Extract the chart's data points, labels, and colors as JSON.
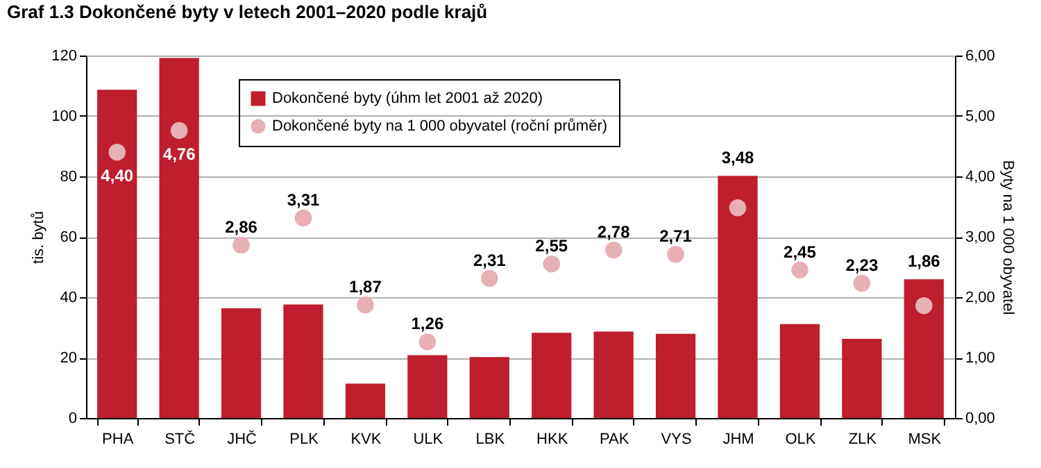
{
  "chart_data": {
    "type": "bar",
    "title": "Graf 1.3 Dokončené byty v letech 2001–2020 podle krajů",
    "ylabel": "tis. bytů",
    "y2label": "Byty na 1 000 obyvatel",
    "categories": [
      "PHA",
      "STČ",
      "JHČ",
      "PLK",
      "KVK",
      "ULK",
      "LBK",
      "HKK",
      "PAK",
      "VYS",
      "JHM",
      "OLK",
      "ZLK",
      "MSK"
    ],
    "series": [
      {
        "name": "Dokončené byty (úhm let 2001 až 2020)",
        "color": "#be1e2d",
        "values": [
          108.7,
          119.2,
          36.3,
          37.6,
          11.4,
          20.8,
          20.2,
          28.2,
          28.6,
          27.9,
          80.2,
          31.1,
          26.2,
          45.9
        ]
      },
      {
        "name": "Dokončené byty na 1 000 obyvatel (roční průměr)",
        "type": "scatter",
        "axis": "y2",
        "color": "#e6b0b4",
        "marker": "circle",
        "values": [
          4.4,
          4.76,
          2.86,
          3.31,
          1.87,
          1.26,
          2.31,
          2.55,
          2.78,
          2.71,
          3.48,
          2.45,
          2.23,
          1.86
        ],
        "value_labels": [
          "4,40",
          "4,76",
          "2,86",
          "3,31",
          "1,87",
          "1,26",
          "2,31",
          "2,55",
          "2,78",
          "2,71",
          "3,48",
          "2,45",
          "2,23",
          "1,86"
        ]
      }
    ],
    "ylim": [
      0,
      120
    ],
    "yticks": [
      0,
      20,
      40,
      60,
      80,
      100,
      120
    ],
    "y2lim": [
      0,
      6
    ],
    "y2ticks": [
      {
        "value": 0,
        "label": "0,00"
      },
      {
        "value": 1,
        "label": "1,00"
      },
      {
        "value": 2,
        "label": "2,00"
      },
      {
        "value": 3,
        "label": "3,00"
      },
      {
        "value": 4,
        "label": "4,00"
      },
      {
        "value": 5,
        "label": "5,00"
      },
      {
        "value": 6,
        "label": "6,00"
      }
    ],
    "grid": "y",
    "legend": "top"
  }
}
